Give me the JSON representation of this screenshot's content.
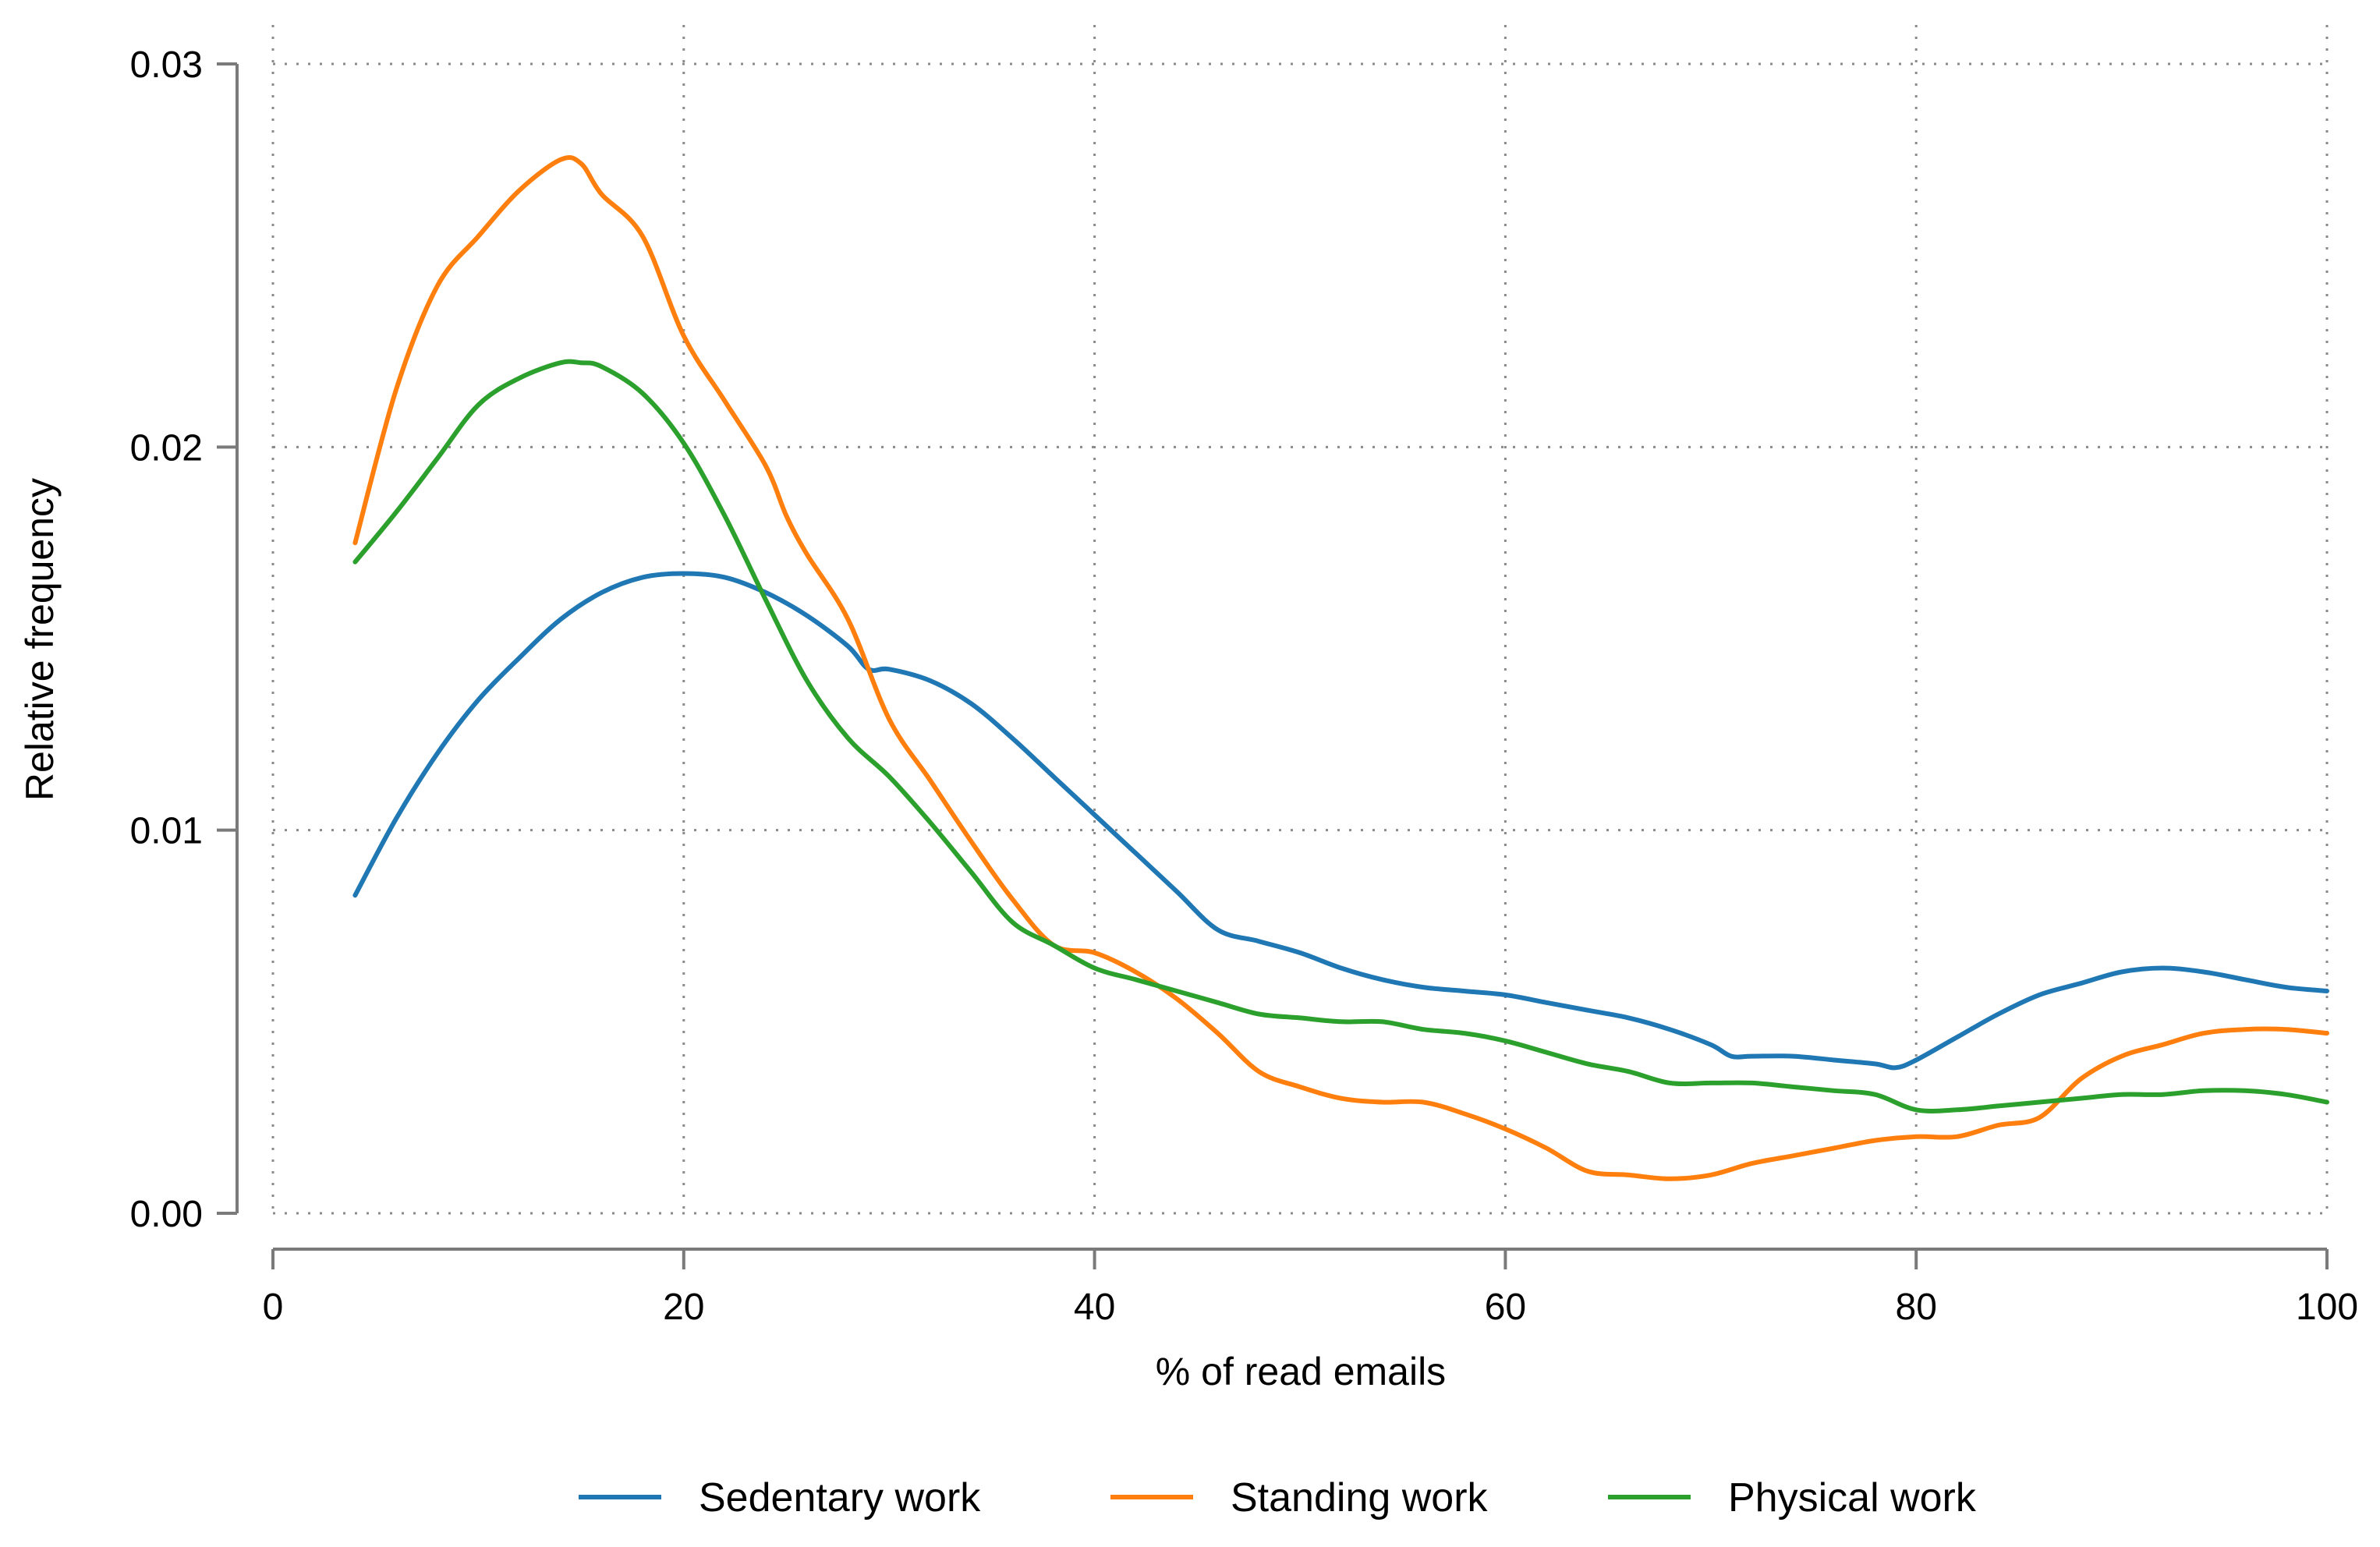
{
  "chart_data": {
    "type": "line",
    "title": "",
    "xlabel": "% of read emails",
    "ylabel": "Relative frequency",
    "xlim": [
      0,
      100
    ],
    "ylim": [
      0,
      0.03
    ],
    "xticks": [
      0,
      20,
      40,
      60,
      80,
      100
    ],
    "xtick_labels": [
      "0",
      "20",
      "40",
      "60",
      "80",
      "100"
    ],
    "yticks": [
      0,
      0.01,
      0.02,
      0.03
    ],
    "ytick_labels": [
      "0.00",
      "0.01",
      "0.02",
      "0.03"
    ],
    "grid": true,
    "legend_position": "bottom",
    "series": [
      {
        "name": "Sedentary work",
        "color": "#1f77b4",
        "x": [
          4,
          6,
          8,
          10,
          12,
          14,
          16,
          18,
          20,
          22,
          24,
          26,
          28,
          29,
          30,
          32,
          34,
          36,
          38,
          40,
          42,
          44,
          46,
          48,
          50,
          52,
          54,
          56,
          58,
          60,
          62,
          64,
          66,
          68,
          70,
          71,
          72,
          74,
          76,
          78,
          79,
          80,
          82,
          84,
          86,
          88,
          90,
          92,
          94,
          96,
          98,
          100
        ],
        "y": [
          0.0083,
          0.0103,
          0.012,
          0.0134,
          0.0145,
          0.0155,
          0.0162,
          0.0166,
          0.0167,
          0.0166,
          0.0162,
          0.0156,
          0.0148,
          0.0142,
          0.0142,
          0.0139,
          0.0133,
          0.0124,
          0.0114,
          0.0104,
          0.0094,
          0.0084,
          0.0074,
          0.0071,
          0.0068,
          0.0064,
          0.0061,
          0.0059,
          0.0058,
          0.0057,
          0.0055,
          0.0053,
          0.0051,
          0.0048,
          0.0044,
          0.0041,
          0.0041,
          0.0041,
          0.004,
          0.0039,
          0.0038,
          0.004,
          0.0046,
          0.0052,
          0.0057,
          0.006,
          0.0063,
          0.0064,
          0.0063,
          0.0061,
          0.0059,
          0.0058
        ]
      },
      {
        "name": "Standing work",
        "color": "#ff7f0e",
        "x": [
          4,
          6,
          8,
          10,
          12,
          14,
          15,
          16,
          18,
          20,
          22,
          24,
          25,
          26,
          28,
          30,
          32,
          34,
          36,
          38,
          40,
          42,
          44,
          46,
          48,
          50,
          52,
          54,
          56,
          58,
          60,
          62,
          64,
          66,
          68,
          70,
          72,
          74,
          76,
          78,
          80,
          82,
          84,
          86,
          88,
          90,
          92,
          94,
          96,
          98,
          100
        ],
        "y": [
          0.0175,
          0.0215,
          0.0242,
          0.0255,
          0.0267,
          0.0275,
          0.0274,
          0.0266,
          0.0255,
          0.0229,
          0.0212,
          0.0195,
          0.0182,
          0.0172,
          0.0155,
          0.0129,
          0.0113,
          0.0097,
          0.0082,
          0.007,
          0.0068,
          0.0063,
          0.0056,
          0.0047,
          0.0037,
          0.0033,
          0.003,
          0.0029,
          0.0029,
          0.0026,
          0.0022,
          0.0017,
          0.0011,
          0.001,
          0.0009,
          0.001,
          0.0013,
          0.0015,
          0.0017,
          0.0019,
          0.002,
          0.002,
          0.0023,
          0.0025,
          0.0035,
          0.0041,
          0.0044,
          0.0047,
          0.0048,
          0.0048,
          0.0047
        ]
      },
      {
        "name": "Physical work",
        "color": "#2ca02c",
        "x": [
          4,
          6,
          8,
          10,
          12,
          14,
          15,
          16,
          18,
          20,
          22,
          24,
          26,
          28,
          30,
          32,
          34,
          36,
          38,
          40,
          42,
          44,
          46,
          48,
          50,
          52,
          54,
          56,
          58,
          60,
          62,
          64,
          66,
          68,
          70,
          72,
          74,
          76,
          78,
          80,
          82,
          84,
          86,
          88,
          90,
          92,
          94,
          96,
          98,
          100
        ],
        "y": [
          0.017,
          0.0183,
          0.0197,
          0.0211,
          0.0218,
          0.0222,
          0.0222,
          0.0221,
          0.0214,
          0.0201,
          0.0182,
          0.016,
          0.0139,
          0.0124,
          0.0114,
          0.0102,
          0.0089,
          0.0076,
          0.007,
          0.0064,
          0.0061,
          0.0058,
          0.0055,
          0.0052,
          0.0051,
          0.005,
          0.005,
          0.0048,
          0.0047,
          0.0045,
          0.0042,
          0.0039,
          0.0037,
          0.0034,
          0.0034,
          0.0034,
          0.0033,
          0.0032,
          0.0031,
          0.0027,
          0.0027,
          0.0028,
          0.0029,
          0.003,
          0.0031,
          0.0031,
          0.0032,
          0.0032,
          0.0031,
          0.0029
        ]
      }
    ]
  }
}
